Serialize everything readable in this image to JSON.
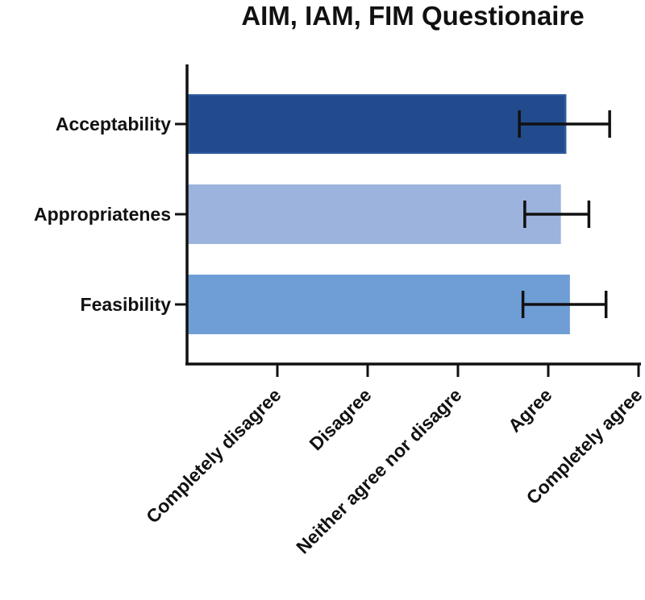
{
  "chart_data": {
    "type": "bar",
    "orientation": "horizontal",
    "title": "AIM, IAM, FIM Questionaire",
    "categories": [
      "Acceptability",
      "Appropriatenes",
      "Feasibility"
    ],
    "values": [
      4.2,
      4.14,
      4.24
    ],
    "error_low": [
      3.68,
      3.74,
      3.72
    ],
    "error_high": [
      4.68,
      4.45,
      4.64
    ],
    "colors": [
      "#224b8d",
      "#9bb3dd",
      "#6f9ed6"
    ],
    "x_tick_values": [
      1,
      2,
      3,
      4,
      5
    ],
    "x_tick_labels": [
      "Completely disagree",
      "Disagree",
      "Neither agree nor disagre",
      "Agree",
      "Completely agree"
    ],
    "xlim": [
      0,
      5
    ],
    "xlabel": "",
    "ylabel": "",
    "grid": false,
    "legend": "none"
  }
}
